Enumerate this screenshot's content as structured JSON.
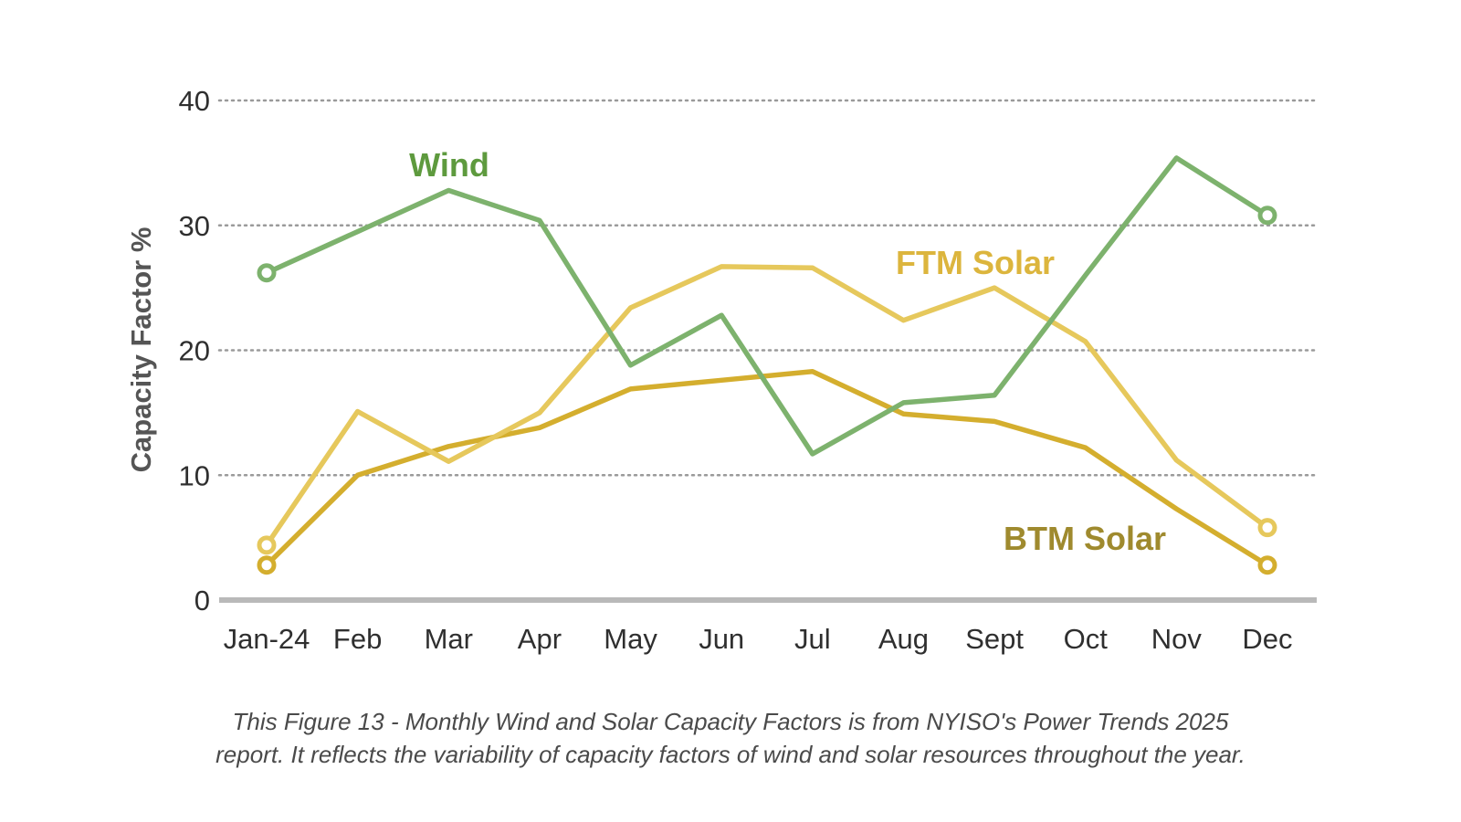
{
  "chart_data": {
    "type": "line",
    "categories": [
      "Jan-24",
      "Feb",
      "Mar",
      "Apr",
      "May",
      "Jun",
      "Jul",
      "Aug",
      "Sept",
      "Oct",
      "Nov",
      "Dec"
    ],
    "series": [
      {
        "name": "Wind",
        "color": "#7db26d",
        "label_color": "#5e9a3e",
        "values": [
          26.2,
          29.5,
          32.8,
          30.4,
          18.8,
          22.8,
          11.7,
          15.8,
          16.4,
          26.0,
          35.4,
          30.8
        ]
      },
      {
        "name": "FTM Solar",
        "color": "#e6c85c",
        "label_color": "#dcb53d",
        "values": [
          4.4,
          15.1,
          11.1,
          15.0,
          23.4,
          26.7,
          26.6,
          22.4,
          25.0,
          20.7,
          11.2,
          5.8
        ]
      },
      {
        "name": "BTM Solar",
        "color": "#d4ae2e",
        "label_color": "#9f8a2e",
        "values": [
          2.8,
          10.0,
          12.3,
          13.8,
          16.9,
          17.6,
          18.3,
          14.9,
          14.3,
          12.2,
          7.3,
          2.8
        ]
      }
    ],
    "ylabel": "Capacity Factor %",
    "xlabel": "",
    "ylim": [
      0,
      40
    ],
    "yticks": [
      0,
      10,
      20,
      30,
      40
    ],
    "grid": true,
    "grid_style": "dotted",
    "markers": "open circles at first and last points"
  },
  "caption": {
    "line1": "This Figure 13 - Monthly Wind and Solar Capacity Factors is from NYISO's Power Trends 2025",
    "line2": "report. It reflects the variability of capacity factors of wind and solar resources throughout the year."
  }
}
